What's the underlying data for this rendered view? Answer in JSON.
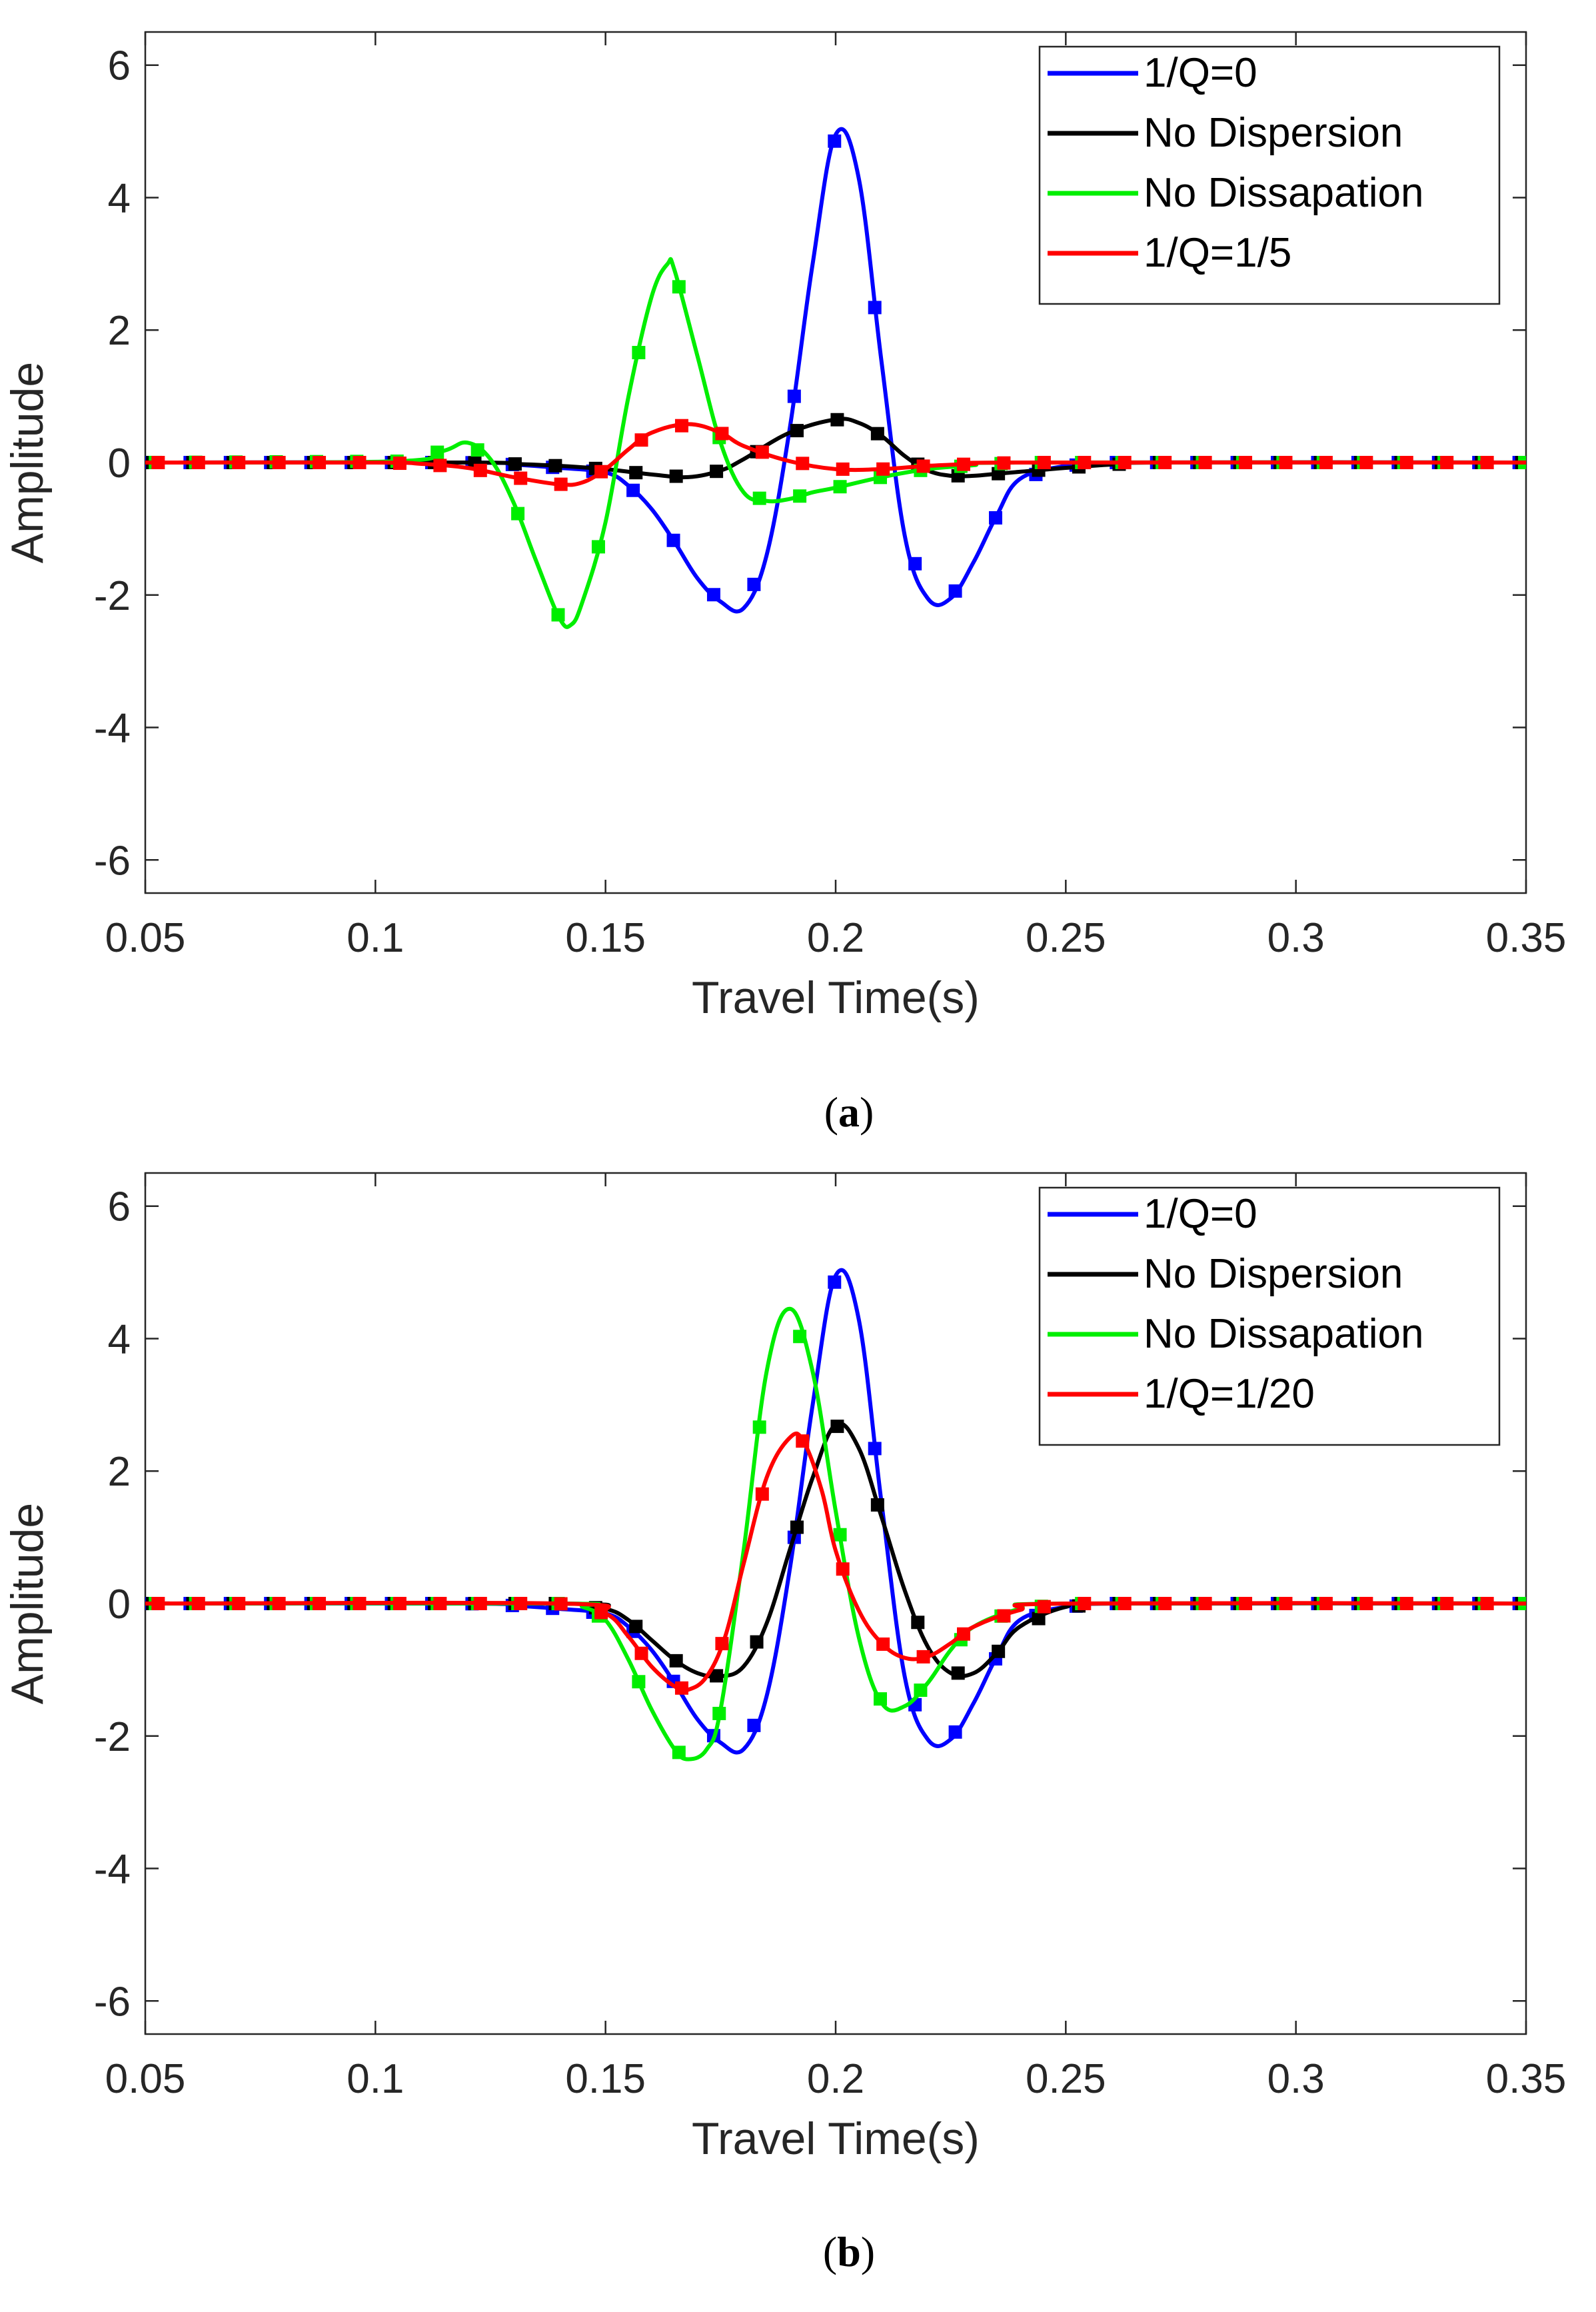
{
  "chart_data": [
    {
      "type": "line",
      "panel_label": "a",
      "xlabel": "Travel Time(s)",
      "ylabel": "Amplitude",
      "xlim": [
        0.05,
        0.35
      ],
      "ylim": [
        -6.5,
        6.5
      ],
      "xticks": [
        0.05,
        0.1,
        0.15,
        0.2,
        0.25,
        0.3,
        0.35
      ],
      "xtick_labels": [
        "0.05",
        "0.1",
        "0.15",
        "0.2",
        "0.25",
        "0.3",
        "0.35"
      ],
      "yticks": [
        -6,
        -4,
        -2,
        0,
        2,
        4,
        6
      ],
      "ytick_labels": [
        "-6",
        "-4",
        "-2",
        "0",
        "2",
        "4",
        "6"
      ],
      "legend_position": "top-right",
      "series": [
        {
          "name": "1/Q=0",
          "color": "#0000ff",
          "marker": "square",
          "x": [
            0.05,
            0.12,
            0.13,
            0.14,
            0.15,
            0.155,
            0.16,
            0.165,
            0.17,
            0.175,
            0.18,
            0.185,
            0.19,
            0.195,
            0.2,
            0.205,
            0.21,
            0.215,
            0.22,
            0.225,
            0.23,
            0.235,
            0.24,
            0.25,
            0.26,
            0.35
          ],
          "y": [
            0,
            0,
            -0.03,
            -0.08,
            -0.15,
            -0.35,
            -0.7,
            -1.2,
            -1.75,
            -2.1,
            -2.2,
            -1.4,
            0.5,
            3.0,
            4.95,
            4.3,
            1.5,
            -1.1,
            -2.05,
            -2.05,
            -1.5,
            -0.8,
            -0.25,
            -0.05,
            0,
            0
          ]
        },
        {
          "name": "No Dispersion",
          "color": "#000000",
          "marker": "square",
          "x": [
            0.05,
            0.12,
            0.13,
            0.14,
            0.15,
            0.16,
            0.168,
            0.175,
            0.18,
            0.19,
            0.2,
            0.205,
            0.21,
            0.215,
            0.22,
            0.225,
            0.23,
            0.235,
            0.24,
            0.25,
            0.26,
            0.27,
            0.35
          ],
          "y": [
            0,
            0,
            -0.02,
            -0.05,
            -0.1,
            -0.18,
            -0.22,
            -0.12,
            0.05,
            0.45,
            0.65,
            0.6,
            0.4,
            0.1,
            -0.12,
            -0.2,
            -0.2,
            -0.17,
            -0.14,
            -0.08,
            -0.03,
            0,
            0
          ]
        },
        {
          "name": "No Dissapation",
          "color": "#00ee00",
          "marker": "square",
          "x": [
            0.05,
            0.105,
            0.115,
            0.12,
            0.125,
            0.13,
            0.135,
            0.14,
            0.1425,
            0.145,
            0.15,
            0.155,
            0.16,
            0.1635,
            0.165,
            0.17,
            0.175,
            0.18,
            0.185,
            0.19,
            0.195,
            0.2,
            0.21,
            0.22,
            0.23,
            0.24,
            0.35
          ],
          "y": [
            0,
            0.02,
            0.18,
            0.3,
            0.05,
            -0.6,
            -1.5,
            -2.35,
            -2.45,
            -2.1,
            -0.9,
            1.0,
            2.5,
            3.0,
            2.9,
            1.6,
            0.3,
            -0.45,
            -0.58,
            -0.55,
            -0.45,
            -0.38,
            -0.22,
            -0.1,
            -0.04,
            0,
            0
          ]
        },
        {
          "name": "1/Q=1/5",
          "color": "#ff0000",
          "marker": "square",
          "x": [
            0.05,
            0.1,
            0.11,
            0.12,
            0.13,
            0.14,
            0.145,
            0.15,
            0.155,
            0.16,
            0.168,
            0.175,
            0.18,
            0.19,
            0.2,
            0.21,
            0.22,
            0.23,
            0.24,
            0.35
          ],
          "y": [
            0,
            0,
            -0.02,
            -0.08,
            -0.22,
            -0.33,
            -0.3,
            -0.1,
            0.2,
            0.45,
            0.58,
            0.45,
            0.25,
            0.02,
            -0.1,
            -0.1,
            -0.05,
            -0.02,
            0,
            0
          ]
        }
      ]
    },
    {
      "type": "line",
      "panel_label": "b",
      "xlabel": "Travel Time(s)",
      "ylabel": "Amplitude",
      "xlim": [
        0.05,
        0.35
      ],
      "ylim": [
        -6.5,
        6.5
      ],
      "xticks": [
        0.05,
        0.1,
        0.15,
        0.2,
        0.25,
        0.3,
        0.35
      ],
      "xtick_labels": [
        "0.05",
        "0.1",
        "0.15",
        "0.2",
        "0.25",
        "0.3",
        "0.35"
      ],
      "yticks": [
        -6,
        -4,
        -2,
        0,
        2,
        4,
        6
      ],
      "ytick_labels": [
        "-6",
        "-4",
        "-2",
        "0",
        "2",
        "4",
        "6"
      ],
      "legend_position": "top-right",
      "series": [
        {
          "name": "1/Q=0",
          "color": "#0000ff",
          "marker": "square",
          "x": [
            0.05,
            0.12,
            0.13,
            0.14,
            0.15,
            0.155,
            0.16,
            0.165,
            0.17,
            0.175,
            0.18,
            0.185,
            0.19,
            0.195,
            0.2,
            0.205,
            0.21,
            0.215,
            0.22,
            0.225,
            0.23,
            0.235,
            0.24,
            0.25,
            0.26,
            0.35
          ],
          "y": [
            0,
            0,
            -0.03,
            -0.08,
            -0.15,
            -0.35,
            -0.7,
            -1.2,
            -1.75,
            -2.1,
            -2.2,
            -1.4,
            0.5,
            3.0,
            4.95,
            4.3,
            1.5,
            -1.1,
            -2.05,
            -2.05,
            -1.5,
            -0.8,
            -0.25,
            -0.05,
            0,
            0
          ]
        },
        {
          "name": "No Dispersion",
          "color": "#000000",
          "marker": "square",
          "x": [
            0.05,
            0.14,
            0.15,
            0.155,
            0.16,
            0.165,
            0.17,
            0.175,
            0.18,
            0.185,
            0.19,
            0.195,
            0.2,
            0.205,
            0.21,
            0.215,
            0.22,
            0.225,
            0.23,
            0.235,
            0.24,
            0.25,
            0.26,
            0.35
          ],
          "y": [
            0,
            0,
            -0.08,
            -0.25,
            -0.55,
            -0.85,
            -1.05,
            -1.1,
            -0.95,
            -0.3,
            0.8,
            1.9,
            2.7,
            2.35,
            1.3,
            0.2,
            -0.65,
            -1.05,
            -1.05,
            -0.75,
            -0.35,
            -0.05,
            0,
            0
          ]
        },
        {
          "name": "No Dissapation",
          "color": "#00ee00",
          "marker": "square",
          "x": [
            0.05,
            0.14,
            0.145,
            0.15,
            0.155,
            0.16,
            0.165,
            0.168,
            0.172,
            0.175,
            0.18,
            0.185,
            0.19,
            0.195,
            0.2,
            0.205,
            0.21,
            0.215,
            0.22,
            0.225,
            0.23,
            0.24,
            0.25,
            0.35
          ],
          "y": [
            0,
            0,
            -0.05,
            -0.25,
            -0.85,
            -1.6,
            -2.2,
            -2.35,
            -2.2,
            -1.6,
            0.8,
            3.5,
            4.45,
            3.5,
            1.4,
            -0.5,
            -1.5,
            -1.55,
            -1.2,
            -0.7,
            -0.35,
            -0.08,
            0,
            0
          ]
        },
        {
          "name": "1/Q=1/20",
          "color": "#ff0000",
          "marker": "square",
          "x": [
            0.05,
            0.14,
            0.15,
            0.155,
            0.16,
            0.165,
            0.168,
            0.172,
            0.176,
            0.18,
            0.185,
            0.19,
            0.193,
            0.197,
            0.2,
            0.205,
            0.21,
            0.215,
            0.22,
            0.225,
            0.23,
            0.24,
            0.25,
            0.35
          ],
          "y": [
            0,
            0,
            -0.15,
            -0.5,
            -0.95,
            -1.25,
            -1.3,
            -1.1,
            -0.5,
            0.6,
            1.9,
            2.5,
            2.45,
            1.7,
            0.8,
            -0.1,
            -0.6,
            -0.82,
            -0.8,
            -0.6,
            -0.35,
            -0.1,
            0,
            0
          ]
        }
      ]
    }
  ]
}
